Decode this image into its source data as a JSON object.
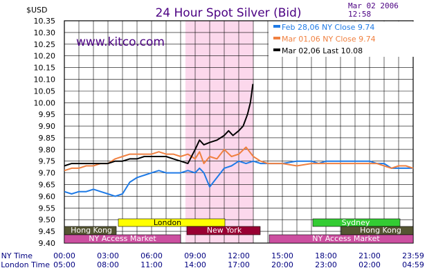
{
  "header": {
    "unit_label": "$USD",
    "title": "24 Hour Spot Silver (Bid)",
    "date": "Mar 02 2006",
    "time": "12:58",
    "website": "www.kitco.com"
  },
  "colors": {
    "feb28": "#1e7ae6",
    "mar01": "#f08040",
    "mar02": "#000000",
    "grid": "#000000",
    "highlight": "#fcd8ec",
    "title": "#4b0082"
  },
  "markets": {
    "london": {
      "label": "London",
      "color": "#ffff00",
      "text": "#000000"
    },
    "new_york": {
      "label": "New York",
      "color": "#990033",
      "text": "#ffffff"
    },
    "sydney": {
      "label": "Sydney",
      "color": "#33cc33",
      "text": "#ffffff"
    },
    "hong_kong_1": {
      "label": "Hong  Kong",
      "color": "#555533",
      "text": "#ffffff"
    },
    "hong_kong_2": {
      "label": "Hong  Kong",
      "color": "#555533",
      "text": "#ffffff"
    },
    "ny_access_1": {
      "label": "NY  Access  Market",
      "color": "#cc4fa0",
      "text": "#ffffff"
    },
    "ny_access_2": {
      "label": "NY  Access  Market",
      "color": "#cc4fa0",
      "text": "#ffffff"
    }
  },
  "axis_rows": {
    "ny_label": "NY Time",
    "london_label": "London Time",
    "ny_times": [
      "00:00",
      "03:00",
      "06:00",
      "09:00",
      "12:00",
      "15:00",
      "18:00",
      "21:00",
      "23:59"
    ],
    "london_times": [
      "05:00",
      "08:00",
      "11:00",
      "14:00",
      "17:00",
      "20:00",
      "23:00",
      "02:00",
      "04:59"
    ]
  },
  "chart_data": {
    "type": "line",
    "title": "24 Hour Spot Silver (Bid)",
    "ylabel": "$USD",
    "xlabel": "NY Time",
    "x_unit": "hours (NY time)",
    "xlim": [
      0,
      24
    ],
    "ylim": [
      9.4,
      10.35
    ],
    "ytick_step": 0.05,
    "yticks": [
      "10.35",
      "10.30",
      "10.25",
      "10.20",
      "10.15",
      "10.10",
      "10.05",
      "10.00",
      "9.95",
      "9.90",
      "9.85",
      "9.80",
      "9.75",
      "9.70",
      "9.65",
      "9.60",
      "9.55",
      "9.50",
      "9.45",
      "9.40"
    ],
    "grid": true,
    "legend_position": "top-right",
    "series": [
      {
        "name": "Feb 28,06",
        "legend": "Feb 28,06  NY  Close  9.74",
        "color": "#1e7ae6",
        "x": [
          0,
          0.5,
          1,
          1.5,
          2,
          2.5,
          3,
          3.5,
          4,
          4.5,
          5,
          5.5,
          6,
          6.5,
          7,
          7.5,
          8,
          8.5,
          9,
          9.3,
          9.6,
          10,
          10.5,
          11,
          11.5,
          12,
          12.5,
          13,
          13.5,
          14,
          15,
          16,
          17,
          17.5,
          18,
          19,
          20,
          21,
          21.5,
          22,
          22.5,
          23,
          23.5,
          24
        ],
        "values": [
          9.62,
          9.61,
          9.62,
          9.62,
          9.63,
          9.62,
          9.61,
          9.6,
          9.61,
          9.66,
          9.68,
          9.69,
          9.7,
          9.71,
          9.7,
          9.7,
          9.7,
          9.71,
          9.7,
          9.72,
          9.7,
          9.64,
          9.68,
          9.72,
          9.73,
          9.75,
          9.74,
          9.75,
          9.74,
          9.74,
          9.74,
          9.75,
          9.75,
          9.74,
          9.75,
          9.75,
          9.75,
          9.75,
          9.74,
          9.74,
          9.72,
          9.72,
          9.72,
          9.72
        ]
      },
      {
        "name": "Mar 01,06",
        "legend": "Mar  01,06  NY  Close  9.74",
        "color": "#f08040",
        "x": [
          0,
          0.5,
          1,
          1.5,
          2,
          2.5,
          3,
          3.5,
          4,
          4.5,
          5,
          5.5,
          6,
          6.5,
          7,
          7.5,
          8,
          8.5,
          9,
          9.3,
          9.6,
          10,
          10.5,
          11,
          11.5,
          12,
          12.5,
          13,
          13.5,
          14,
          15,
          16,
          17,
          17.5,
          18,
          19,
          20,
          21,
          21.5,
          22,
          22.5,
          23,
          23.5,
          24
        ],
        "values": [
          9.71,
          9.72,
          9.72,
          9.73,
          9.73,
          9.74,
          9.74,
          9.76,
          9.77,
          9.78,
          9.78,
          9.78,
          9.78,
          9.79,
          9.78,
          9.78,
          9.77,
          9.78,
          9.76,
          9.79,
          9.74,
          9.77,
          9.76,
          9.8,
          9.77,
          9.78,
          9.81,
          9.77,
          9.75,
          9.74,
          9.74,
          9.73,
          9.74,
          9.74,
          9.74,
          9.74,
          9.74,
          9.74,
          9.74,
          9.73,
          9.72,
          9.73,
          9.73,
          9.72
        ]
      },
      {
        "name": "Mar 02,06",
        "legend": "Mar  02,06  Last  10.08",
        "color": "#000000",
        "x": [
          0,
          0.5,
          1,
          1.5,
          2,
          2.5,
          3,
          3.5,
          4,
          4.5,
          5,
          5.5,
          6,
          6.5,
          7,
          7.5,
          8,
          8.5,
          9,
          9.3,
          9.6,
          10,
          10.5,
          11,
          11.3,
          11.6,
          12,
          12.3,
          12.6,
          12.8,
          12.97
        ],
        "values": [
          9.73,
          9.74,
          9.74,
          9.74,
          9.74,
          9.74,
          9.74,
          9.75,
          9.75,
          9.76,
          9.76,
          9.77,
          9.77,
          9.77,
          9.77,
          9.76,
          9.75,
          9.74,
          9.8,
          9.84,
          9.82,
          9.83,
          9.84,
          9.86,
          9.88,
          9.86,
          9.88,
          9.9,
          9.95,
          10.0,
          10.08
        ]
      }
    ]
  }
}
